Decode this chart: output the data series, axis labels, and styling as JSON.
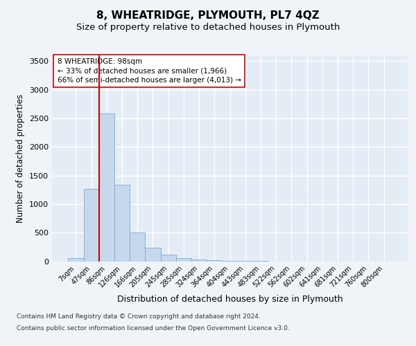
{
  "title": "8, WHEATRIDGE, PLYMOUTH, PL7 4QZ",
  "subtitle": "Size of property relative to detached houses in Plymouth",
  "xlabel": "Distribution of detached houses by size in Plymouth",
  "ylabel": "Number of detached properties",
  "categories": [
    "7sqm",
    "47sqm",
    "86sqm",
    "126sqm",
    "166sqm",
    "205sqm",
    "245sqm",
    "285sqm",
    "324sqm",
    "364sqm",
    "404sqm",
    "443sqm",
    "483sqm",
    "522sqm",
    "562sqm",
    "602sqm",
    "641sqm",
    "681sqm",
    "721sqm",
    "760sqm",
    "800sqm"
  ],
  "values": [
    55,
    1260,
    2580,
    1340,
    500,
    240,
    120,
    55,
    30,
    20,
    10,
    5,
    3,
    0,
    0,
    0,
    0,
    0,
    0,
    0,
    0
  ],
  "bar_color": "#c5d8ec",
  "bar_edgecolor": "#7aaad0",
  "vline_color": "#cc0000",
  "vline_pos": 1.5,
  "annotation_text": "8 WHEATRIDGE: 98sqm\n← 33% of detached houses are smaller (1,966)\n66% of semi-detached houses are larger (4,013) →",
  "ylim": [
    0,
    3600
  ],
  "yticks": [
    0,
    500,
    1000,
    1500,
    2000,
    2500,
    3000,
    3500
  ],
  "fig_bg": "#f0f4f8",
  "plot_bg": "#e4edf5",
  "footer_line1": "Contains HM Land Registry data © Crown copyright and database right 2024.",
  "footer_line2": "Contains public sector information licensed under the Open Government Licence v3.0.",
  "title_fontsize": 11,
  "subtitle_fontsize": 9.5,
  "ylabel_fontsize": 8.5,
  "xlabel_fontsize": 9,
  "annot_fontsize": 7.5,
  "tick_fontsize": 7,
  "footer_fontsize": 6.5
}
